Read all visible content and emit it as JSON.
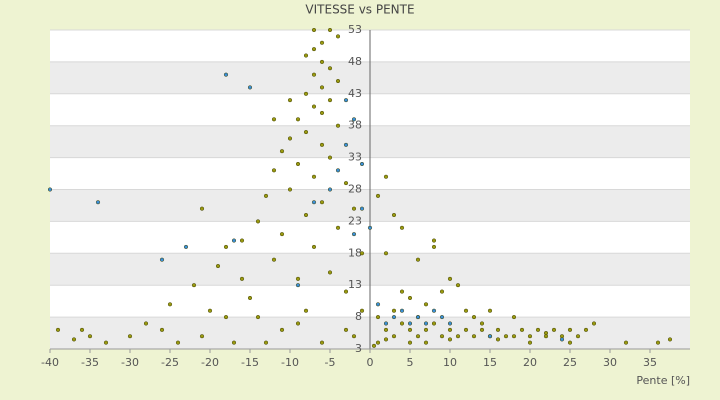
{
  "chart_data": {
    "type": "scatter",
    "title": "VITESSE vs PENTE",
    "x_label": "Pente [%]",
    "xlim": [
      -40,
      40
    ],
    "xticks": [
      -40,
      -35,
      -30,
      -25,
      -20,
      -15,
      -10,
      -5,
      0,
      5,
      10,
      15,
      20,
      25,
      30,
      35
    ],
    "ylim": [
      3,
      53
    ],
    "yticks": [
      3,
      8,
      13,
      18,
      23,
      28,
      33,
      38,
      43,
      48,
      53
    ],
    "grid": true,
    "series": [
      {
        "color": "#9a9a10",
        "x": [
          -5,
          -6,
          -7,
          -8,
          -6,
          -5,
          -7,
          -4,
          -6,
          -8,
          -5,
          -7,
          -6,
          -9,
          -4,
          -8,
          -10,
          -6,
          -11,
          -5,
          -9,
          -12,
          -7,
          -3,
          -10,
          -13,
          -6,
          -2,
          -8,
          -14,
          -4,
          -11,
          -16,
          -7,
          -1,
          -12,
          -19,
          -5,
          -9,
          -22,
          -3,
          -15,
          -25,
          -8,
          -18,
          -28,
          -11,
          -21,
          -30,
          -13,
          -24,
          -33,
          -6,
          -17,
          -9,
          -3,
          -2,
          -1,
          -14,
          -20,
          -26,
          -36,
          -39,
          -37,
          -35,
          -16,
          -18,
          -21,
          -12,
          -10,
          -7,
          -4,
          1,
          2,
          3,
          4,
          5,
          6,
          7,
          8,
          9,
          10,
          11,
          12,
          13,
          14,
          15,
          16,
          17,
          18,
          19,
          20,
          21,
          22,
          23,
          24,
          25,
          26,
          27,
          28,
          3,
          5,
          7,
          9,
          11,
          13,
          4,
          2,
          3,
          1,
          2,
          4,
          6,
          8,
          8,
          10,
          12,
          14,
          20,
          25,
          32,
          36,
          37.5,
          1,
          0.5,
          2,
          5,
          6,
          15,
          18,
          22,
          16,
          10,
          7
        ],
        "values": [
          53,
          51,
          50,
          49,
          48,
          47,
          46,
          45,
          44,
          43,
          42,
          41,
          40,
          39,
          38,
          37,
          36,
          35,
          34,
          33,
          32,
          31,
          30,
          29,
          28,
          27,
          26,
          25,
          24,
          23,
          22,
          21,
          20,
          19,
          18,
          17,
          16,
          15,
          14,
          13,
          12,
          11,
          10,
          9,
          8,
          7,
          6,
          5,
          5,
          4,
          4,
          4,
          4,
          4,
          7,
          6,
          5,
          9,
          8,
          9,
          6,
          6,
          6,
          4.5,
          5,
          14,
          19,
          25,
          39,
          42,
          53,
          52,
          8,
          6,
          5,
          7,
          6,
          5,
          6,
          7,
          5,
          6,
          5,
          6,
          5,
          6,
          5,
          6,
          5,
          5,
          6,
          5,
          6,
          5,
          6,
          5,
          6,
          5,
          6,
          7,
          9,
          11,
          10,
          12,
          13,
          8,
          12,
          18,
          24,
          27,
          30,
          22,
          17,
          20,
          19,
          14,
          9,
          7,
          4,
          4,
          4,
          4,
          4.5,
          4,
          3.5,
          4.5,
          4,
          8,
          9,
          8,
          5.5,
          4.5,
          4.5,
          4
        ]
      },
      {
        "color": "#3a8fd8",
        "x": [
          -40,
          -34,
          -18,
          -15,
          -26,
          -23,
          -17,
          -3,
          -2,
          -1,
          -1,
          0,
          -2,
          1,
          3,
          4,
          5,
          6,
          7,
          8,
          9,
          10,
          -5,
          -4,
          -7,
          -3,
          24,
          -9,
          2,
          15
        ],
        "values": [
          28,
          26,
          46,
          44,
          17,
          19,
          20,
          42,
          39,
          32,
          25,
          22,
          21,
          10,
          8,
          9,
          7,
          8,
          7,
          9,
          8,
          7,
          28,
          31,
          26,
          35,
          4.5,
          13,
          7,
          5
        ]
      }
    ]
  }
}
